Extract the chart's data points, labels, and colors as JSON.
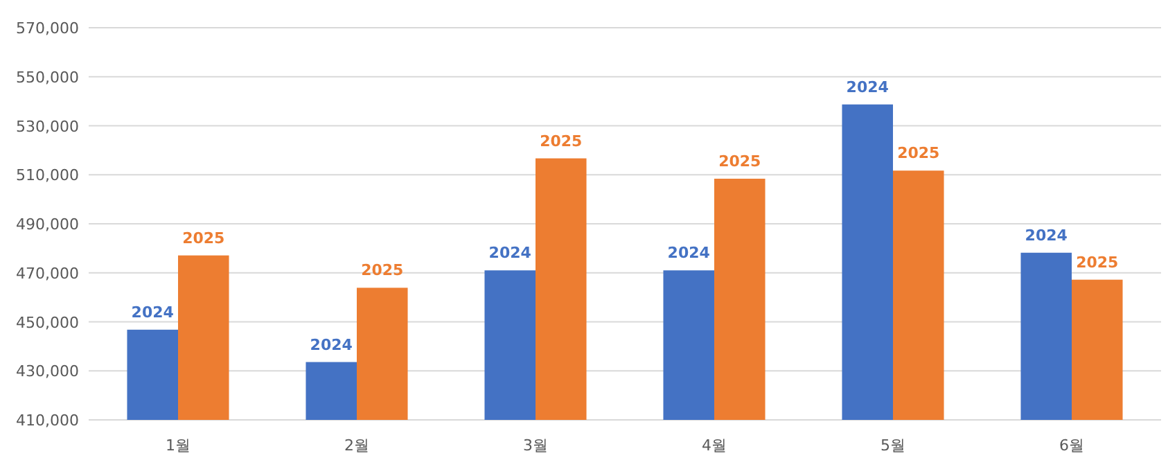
{
  "chart_data": {
    "type": "bar",
    "categories": [
      "1월",
      "2월",
      "3월",
      "4월",
      "5월",
      "6월"
    ],
    "series": [
      {
        "name": "2024",
        "color": "#4472c4",
        "values": [
          446800,
          433600,
          471000,
          471000,
          538700,
          478200
        ]
      },
      {
        "name": "2025",
        "color": "#ed7d31",
        "values": [
          477100,
          463900,
          516700,
          508400,
          511700,
          467200
        ]
      }
    ],
    "ylim": [
      410000,
      570000
    ],
    "yticks": [
      {
        "value": 410000,
        "label": "410,000"
      },
      {
        "value": 430000,
        "label": "430,000"
      },
      {
        "value": 450000,
        "label": "450,000"
      },
      {
        "value": 470000,
        "label": "470,000"
      },
      {
        "value": 490000,
        "label": "490,000"
      },
      {
        "value": 510000,
        "label": "510,000"
      },
      {
        "value": 530000,
        "label": "530,000"
      },
      {
        "value": 550000,
        "label": "550,000"
      },
      {
        "value": 570000,
        "label": "570,000"
      }
    ],
    "grid": "y",
    "legend": false
  }
}
